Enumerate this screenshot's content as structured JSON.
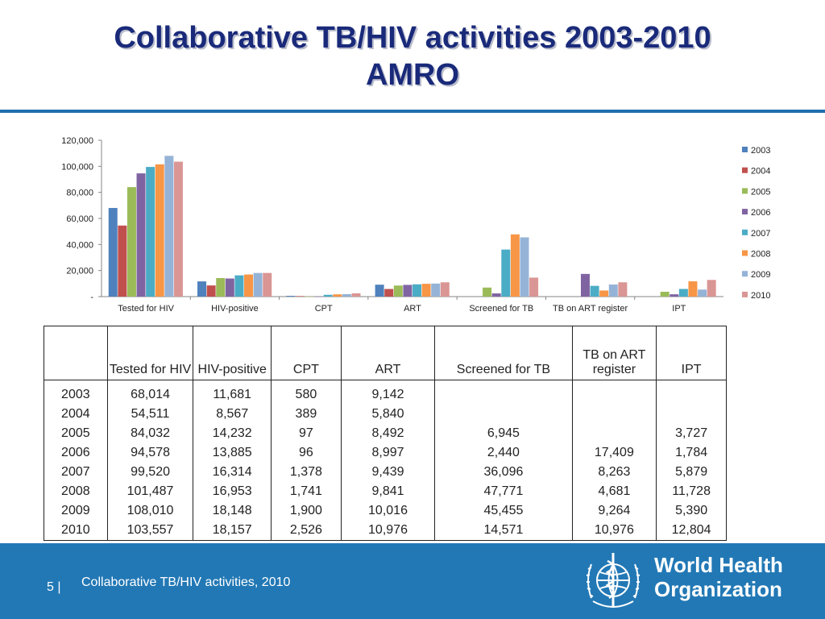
{
  "slide": {
    "title_line1": "Collaborative TB/HIV activities 2003-2010",
    "title_line2": "AMRO"
  },
  "chart_data": {
    "type": "bar",
    "categories": [
      "Tested for HIV",
      "HIV-positive",
      "CPT",
      "ART",
      "Screened for TB",
      "TB on ART register",
      "IPT"
    ],
    "series": [
      {
        "name": "2003",
        "color": "#4f81bd",
        "values": [
          68014,
          11681,
          580,
          9142,
          null,
          null,
          null
        ]
      },
      {
        "name": "2004",
        "color": "#c0504d",
        "values": [
          54511,
          8567,
          389,
          5840,
          null,
          null,
          null
        ]
      },
      {
        "name": "2005",
        "color": "#9bbb59",
        "values": [
          84032,
          14232,
          97,
          8492,
          6945,
          null,
          3727
        ]
      },
      {
        "name": "2006",
        "color": "#8064a2",
        "values": [
          94578,
          13885,
          96,
          8997,
          2440,
          17409,
          1784
        ]
      },
      {
        "name": "2007",
        "color": "#4bacc6",
        "values": [
          99520,
          16314,
          1378,
          9439,
          36096,
          8263,
          5879
        ]
      },
      {
        "name": "2008",
        "color": "#f79646",
        "values": [
          101487,
          16953,
          1741,
          9841,
          47771,
          4681,
          11728
        ]
      },
      {
        "name": "2009",
        "color": "#95b3d7",
        "values": [
          108010,
          18148,
          1900,
          10016,
          45455,
          9264,
          5390
        ]
      },
      {
        "name": "2010",
        "color": "#da9694",
        "values": [
          103557,
          18157,
          2526,
          10976,
          14571,
          10976,
          12804
        ]
      }
    ],
    "yticks": [
      "-",
      "20,000",
      "40,000",
      "60,000",
      "80,000",
      "100,000",
      "120,000"
    ],
    "ylim": [
      0,
      120000
    ],
    "legend_position": "right",
    "grid": false
  },
  "table": {
    "headers": [
      "",
      "Tested for HIV",
      "HIV-positive",
      "CPT",
      "ART",
      "Screened for TB",
      "TB on ART register",
      "IPT"
    ],
    "rows": [
      [
        "2003",
        "68,014",
        "11,681",
        "580",
        "9,142",
        "",
        "",
        ""
      ],
      [
        "2004",
        "54,511",
        "8,567",
        "389",
        "5,840",
        "",
        "",
        ""
      ],
      [
        "2005",
        "84,032",
        "14,232",
        "97",
        "8,492",
        "6,945",
        "",
        "3,727"
      ],
      [
        "2006",
        "94,578",
        "13,885",
        "96",
        "8,997",
        "2,440",
        "17,409",
        "1,784"
      ],
      [
        "2007",
        "99,520",
        "16,314",
        "1,378",
        "9,439",
        "36,096",
        "8,263",
        "5,879"
      ],
      [
        "2008",
        "101,487",
        "16,953",
        "1,741",
        "9,841",
        "47,771",
        "4,681",
        "11,728"
      ],
      [
        "2009",
        "108,010",
        "18,148",
        "1,900",
        "10,016",
        "45,455",
        "9,264",
        "5,390"
      ],
      [
        "2010",
        "103,557",
        "18,157",
        "2,526",
        "10,976",
        "14,571",
        "10,976",
        "12,804"
      ]
    ]
  },
  "footer": {
    "page_number": "5 |",
    "text": "Collaborative TB/HIV activities, 2010",
    "org_line1": "World Health",
    "org_line2": "Organization",
    "emblem_icon": "who-emblem-icon"
  },
  "colors": {
    "title": "#1a2a7a",
    "rule": "#1f6fb0",
    "footer_bg": "#2278b5"
  }
}
